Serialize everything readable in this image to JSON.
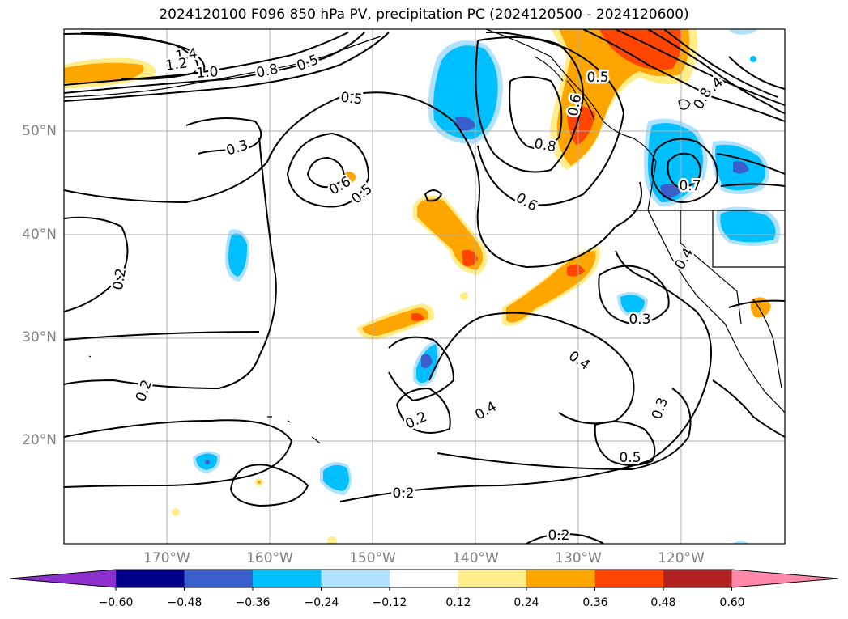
{
  "title": "2024120100 F096 850 hPa PV, precipitation PC (2024120500 - 2024120600)",
  "map": {
    "lat_labels": [
      "50°N",
      "40°N",
      "30°N",
      "20°N"
    ],
    "lon_labels": [
      "170°W",
      "160°W",
      "150°W",
      "140°W",
      "130°W",
      "120°W"
    ],
    "contour_labels": [
      "1.4",
      "1.2",
      "1.0",
      "0.8",
      "0.5",
      "0.5",
      "0.3",
      "0.6",
      "0.5",
      "0.8",
      "0.6",
      "0.5",
      "0.6",
      "1.4",
      "0.8",
      "0.7",
      "0.4",
      "0.2",
      "0.3",
      "0.4",
      "0.2",
      "0.2",
      "0.4",
      "0.3",
      "0.5",
      "0.2",
      "0.2"
    ]
  },
  "colorbar": {
    "ticks": [
      "−0.60",
      "−0.48",
      "−0.36",
      "−0.24",
      "−0.12",
      "0.12",
      "0.24",
      "0.36",
      "0.48",
      "0.60"
    ],
    "colors": [
      "#8e2fd0",
      "#00008b",
      "#3a5fcd",
      "#00bfff",
      "#b0e2ff",
      "#ffffff",
      "#ffec8b",
      "#ffa500",
      "#ff4500",
      "#b22222",
      "#ff88aa"
    ]
  }
}
